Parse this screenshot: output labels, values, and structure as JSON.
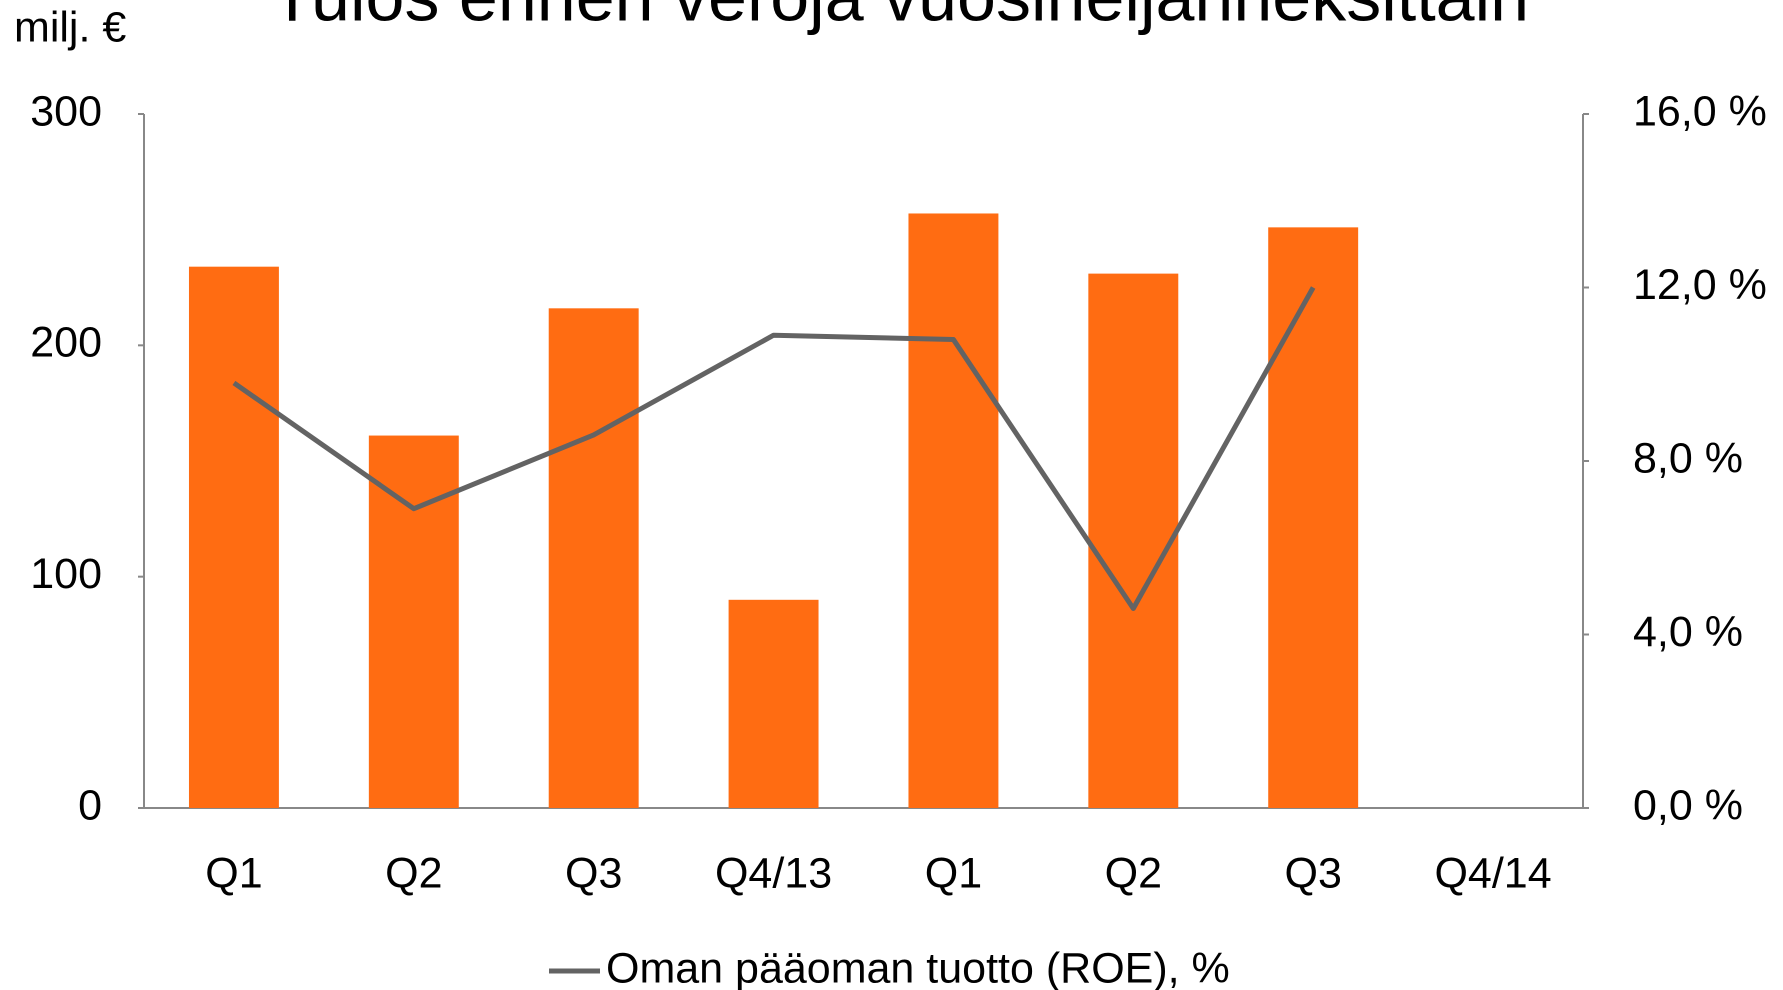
{
  "chart_data": {
    "type": "bar_line",
    "title": "Tulos ennen veroja vuosineljänneksittäin",
    "y_label": "milj. €",
    "categories": [
      "Q1",
      "Q2",
      "Q3",
      "Q4/13",
      "Q1",
      "Q2",
      "Q3",
      "Q4/14"
    ],
    "series": [
      {
        "type": "bar",
        "color": "#ff6c12",
        "values": [
          234,
          161,
          216,
          90,
          257,
          231,
          251,
          null
        ]
      },
      {
        "type": "line",
        "name": "Oman pääoman tuotto (ROE), %",
        "color": "#636363",
        "axis": "y2",
        "values": [
          9.8,
          6.9,
          8.6,
          10.9,
          10.8,
          4.6,
          12.0,
          null
        ]
      }
    ],
    "ylim": [
      0,
      300
    ],
    "yticks": [
      0,
      100,
      200,
      300
    ],
    "y2lim": [
      0,
      16
    ],
    "y2ticks": [
      {
        "value": 0,
        "label": "0,0 %"
      },
      {
        "value": 4,
        "label": "4,0 %"
      },
      {
        "value": 8,
        "label": "8,0 %"
      },
      {
        "value": 12,
        "label": "12,0 %"
      },
      {
        "value": 16,
        "label": "16,0 %"
      }
    ],
    "legend": "bottom"
  }
}
